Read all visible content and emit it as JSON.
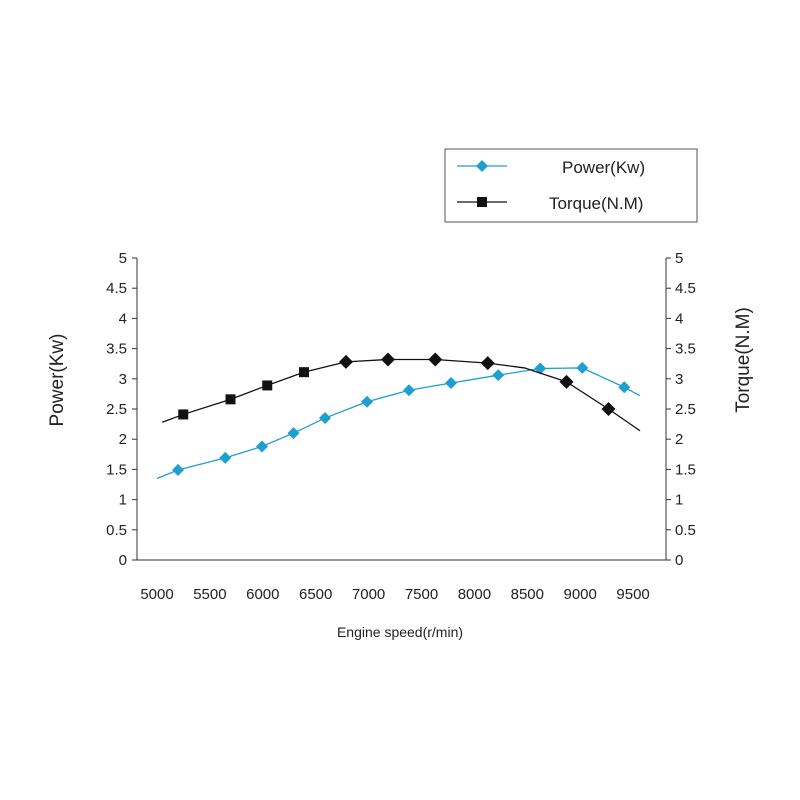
{
  "chart_data": {
    "type": "line",
    "title": "",
    "xlabel": "Engine speed(r/min)",
    "ylabel_left": "Power(Kw)",
    "ylabel_right": "Torque(N.M)",
    "x_tick_labels": [
      "5000",
      "5500",
      "6000",
      "6500",
      "7000",
      "7500",
      "8000",
      "8500",
      "9000",
      "9500"
    ],
    "xlim": [
      5000,
      9500
    ],
    "y_tick_labels": [
      "0",
      "0.5",
      "1",
      "1.5",
      "2",
      "2.5",
      "3",
      "3.5",
      "4",
      "4.5",
      "5"
    ],
    "ylim": [
      0,
      5
    ],
    "ylim_right": [
      0,
      5
    ],
    "grid": false,
    "legend_position": "top-right",
    "series": [
      {
        "name": "Power(Kw)",
        "color": "#1f9fd0",
        "marker": "diamond",
        "axis": "left",
        "line_x": [
          5000,
          5200,
          5650,
          6000,
          6300,
          6600,
          7000,
          7400,
          7800,
          8250,
          8650,
          9050,
          9450,
          9600
        ],
        "line_y": [
          1.35,
          1.49,
          1.69,
          1.88,
          2.1,
          2.35,
          2.62,
          2.81,
          2.93,
          3.06,
          3.17,
          3.18,
          2.86,
          2.72
        ],
        "x": [
          5200,
          5650,
          6000,
          6300,
          6600,
          7000,
          7400,
          7800,
          8250,
          8650,
          9050,
          9450
        ],
        "y": [
          1.49,
          1.69,
          1.88,
          2.1,
          2.35,
          2.62,
          2.81,
          2.93,
          3.06,
          3.17,
          3.18,
          2.86
        ]
      },
      {
        "name": "Torque(N.M)",
        "color": "#111111",
        "marker_square_x": [
          5250,
          5700,
          6050,
          6400
        ],
        "marker_diamond_x": [
          6800,
          7200,
          7650,
          8150,
          8900,
          9300
        ],
        "axis": "right",
        "line_x": [
          5050,
          5250,
          5700,
          6050,
          6400,
          6800,
          7200,
          7650,
          8150,
          8500,
          8900,
          9300,
          9600
        ],
        "line_y": [
          2.28,
          2.41,
          2.66,
          2.89,
          3.11,
          3.28,
          3.32,
          3.32,
          3.26,
          3.18,
          2.95,
          2.5,
          2.14
        ],
        "x": [
          5250,
          5700,
          6050,
          6400,
          6800,
          7200,
          7650,
          8150,
          8900,
          9300
        ],
        "y": [
          2.41,
          2.66,
          2.89,
          3.11,
          3.28,
          3.32,
          3.32,
          3.26,
          2.95,
          2.5
        ]
      }
    ]
  }
}
